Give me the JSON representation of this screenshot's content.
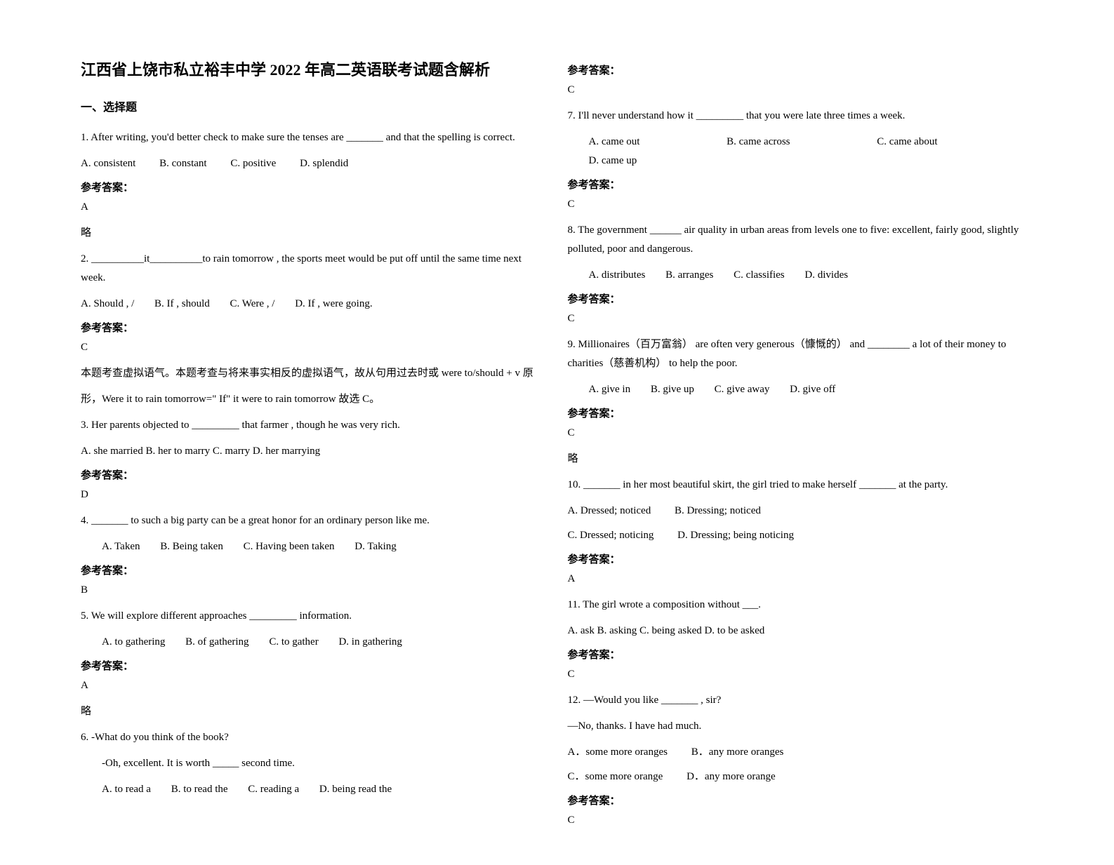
{
  "title": "江西省上饶市私立裕丰中学 2022 年高二英语联考试题含解析",
  "section1_heading": "一、选择题",
  "answer_label": "参考答案：",
  "note_short": "略",
  "q1": {
    "text": "1. After writing, you'd better check to make sure the tenses are _______ and that the spelling is correct.",
    "optA": "A. consistent",
    "optB": "B. constant",
    "optC": "C. positive",
    "optD": "D. splendid",
    "answer": "A"
  },
  "q2": {
    "text": "2. __________it__________to rain tomorrow , the sports meet would be put off until the same time next week.",
    "optA": "A. Should , /",
    "optB": "B. If , should",
    "optC": "C. Were , /",
    "optD": "D. If , were going.",
    "answer": "C",
    "explain1": "本题考查虚拟语气。本题考查与将来事实相反的虚拟语气，故从句用过去时或 were to/should + v 原",
    "explain2": "形，Were it to rain tomorrow=\" If\" it were to rain tomorrow 故选 C。"
  },
  "q3": {
    "text": "3. Her parents objected to _________ that farmer , though he was very rich.",
    "opts": "A. she married   B. her to marry   C. marry   D. her marrying",
    "answer": "D"
  },
  "q4": {
    "text": "4. _______ to such a big party can be a great honor for an ordinary person like me.",
    "optA": "A. Taken",
    "optB": "B. Being taken",
    "optC": "C. Having been taken",
    "optD": "D. Taking",
    "answer": "B"
  },
  "q5": {
    "text": "5. We will explore different approaches _________ information.",
    "optA": "A. to gathering",
    "optB": "B. of gathering",
    "optC": "C. to gather",
    "optD": "D. in gathering",
    "answer": "A"
  },
  "q6": {
    "text1": "6. -What do you think of the book?",
    "text2": "-Oh, excellent. It is worth _____ second time.",
    "optA": "A. to read a",
    "optB": "B. to read the",
    "optC": "C. reading a",
    "optD": "D. being read the",
    "answer": "C"
  },
  "q7": {
    "text": "7. I'll never understand how it _________ that you were late three times a week.",
    "optA": "A. came out",
    "optB": "B. came across",
    "optC": "C. came about",
    "optD": "D. came up",
    "answer": "C"
  },
  "q8": {
    "text": "8. The government ______ air quality in urban areas from levels one to five: excellent, fairly good, slightly polluted, poor and dangerous.",
    "optA": "A. distributes",
    "optB": "B. arranges",
    "optC": "C. classifies",
    "optD": "D. divides",
    "answer": "C"
  },
  "q9": {
    "text": "9. Millionaires（百万富翁） are often very generous（慷慨的） and ________ a lot of their money to charities（慈善机构） to help the poor.",
    "optA": "A. give in",
    "optB": "B. give up",
    "optC": "C. give away",
    "optD": "D. give off",
    "answer": "C"
  },
  "q10": {
    "text": "10. _______ in her most beautiful skirt, the girl tried to make herself _______ at the party.",
    "optA": "A. Dressed; noticed",
    "optB": "B. Dressing; noticed",
    "optC": "C. Dressed; noticing",
    "optD": "D. Dressing; being noticing",
    "answer": "A"
  },
  "q11": {
    "text": "11. The girl wrote a composition without ___.",
    "opts": "A. ask   B. asking   C. being asked   D. to be asked",
    "answer": "C"
  },
  "q12": {
    "text1": "12. —Would you like _______ , sir?",
    "text2": "—No, thanks. I have had much.",
    "optA": "A．some more oranges",
    "optB": "B．any more oranges",
    "optC": "C．some more orange",
    "optD": "D．any more orange",
    "answer": "C"
  }
}
